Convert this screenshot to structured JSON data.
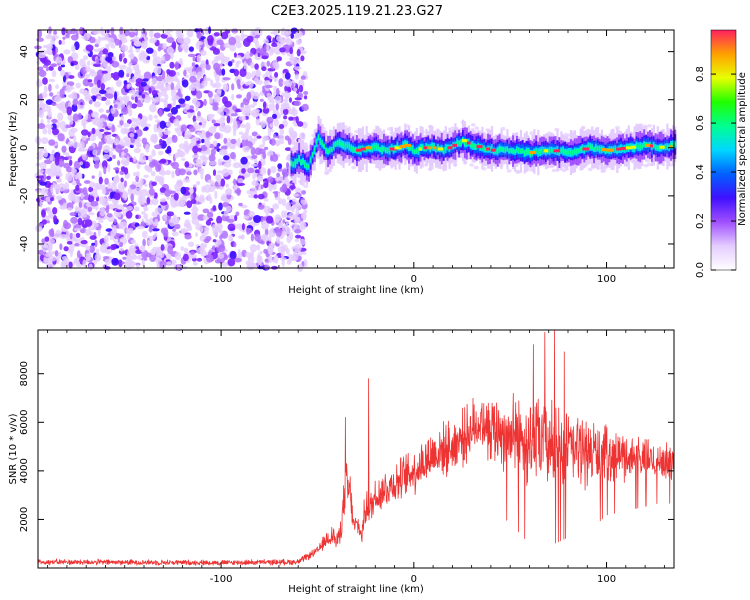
{
  "title": "C2E3.2025.119.21.23.G27",
  "chart_data": [
    {
      "type": "heatmap",
      "xlabel": "Height of straight line (km)",
      "ylabel": "Frequency (Hz)",
      "xlim": [
        -195,
        135
      ],
      "ylim": [
        -50,
        49
      ],
      "xticks": [
        -100,
        0,
        100
      ],
      "yticks": [
        -40,
        -20,
        0,
        20,
        40
      ],
      "grid": false,
      "noise_region_x": [
        -195,
        -56
      ],
      "transition_x": -56,
      "ridge": {
        "x": [
          -64,
          -60,
          -55,
          -50,
          -45,
          -40,
          -35,
          -30,
          -25,
          -20,
          -15,
          -10,
          -5,
          0,
          5,
          10,
          15,
          20,
          25,
          30,
          35,
          40,
          50,
          60,
          70,
          80,
          90,
          100,
          110,
          120,
          130,
          135
        ],
        "freq": [
          -7,
          -5,
          -8,
          4,
          -2,
          2,
          1,
          -1,
          0,
          0,
          -1,
          0,
          1,
          -1,
          0,
          0,
          -1,
          1,
          3,
          1,
          0,
          -1,
          -1,
          -2,
          -1,
          -2,
          0,
          -1,
          0,
          1,
          0,
          1
        ]
      },
      "colorbar": {
        "label": "Normalized spectral amplitude",
        "range": [
          0.0,
          0.98
        ],
        "ticks": [
          0.0,
          0.2,
          0.4,
          0.6,
          0.8
        ],
        "tick_labels": [
          "0.0",
          "0.2",
          "0.4",
          "0.6",
          "0.8"
        ],
        "colors": [
          "#ffffff",
          "#e4ccff",
          "#a050ff",
          "#4010ff",
          "#0060ff",
          "#00d8ff",
          "#00ff90",
          "#20ff00",
          "#e8ff00",
          "#ffa000",
          "#ff2060"
        ]
      }
    },
    {
      "type": "line",
      "xlabel": "Height of straight line (km)",
      "ylabel": "SNR (10 * v/v)",
      "xlim": [
        -195,
        135
      ],
      "ylim": [
        0,
        9800
      ],
      "xticks": [
        -100,
        0,
        100
      ],
      "yticks": [
        2000,
        4000,
        6000,
        8000
      ],
      "grid": false,
      "color": "#ee3333",
      "envelope": {
        "x": [
          -195,
          -100,
          -60,
          -50,
          -45,
          -42,
          -40,
          -38,
          -35,
          -33,
          -31,
          -29,
          -27,
          -25,
          -23,
          -20,
          -10,
          0,
          10,
          20,
          30,
          35,
          40,
          50,
          60,
          70,
          80,
          90,
          100,
          110,
          120,
          130,
          135
        ],
        "mean": [
          250,
          220,
          250,
          700,
          1200,
          1400,
          1000,
          1600,
          3400,
          3000,
          1700,
          1800,
          1300,
          2600,
          2300,
          3000,
          3500,
          4000,
          4700,
          5000,
          5700,
          6100,
          5800,
          5500,
          5200,
          5100,
          4900,
          4800,
          4700,
          4600,
          4500,
          4400,
          4300
        ],
        "spread": [
          100,
          90,
          100,
          150,
          300,
          400,
          300,
          400,
          1000,
          800,
          300,
          400,
          300,
          700,
          600,
          700,
          700,
          800,
          900,
          900,
          1000,
          1000,
          1200,
          1300,
          1500,
          1500,
          1300,
          1200,
          900,
          800,
          700,
          600,
          600
        ]
      },
      "spikes": [
        {
          "x": -35.5,
          "y": 6200
        },
        {
          "x": -23.5,
          "y": 7800
        },
        {
          "x": 62,
          "y": 9200
        },
        {
          "x": 68,
          "y": 9700
        },
        {
          "x": 73,
          "y": 9800
        },
        {
          "x": 78,
          "y": 8900
        }
      ]
    }
  ]
}
